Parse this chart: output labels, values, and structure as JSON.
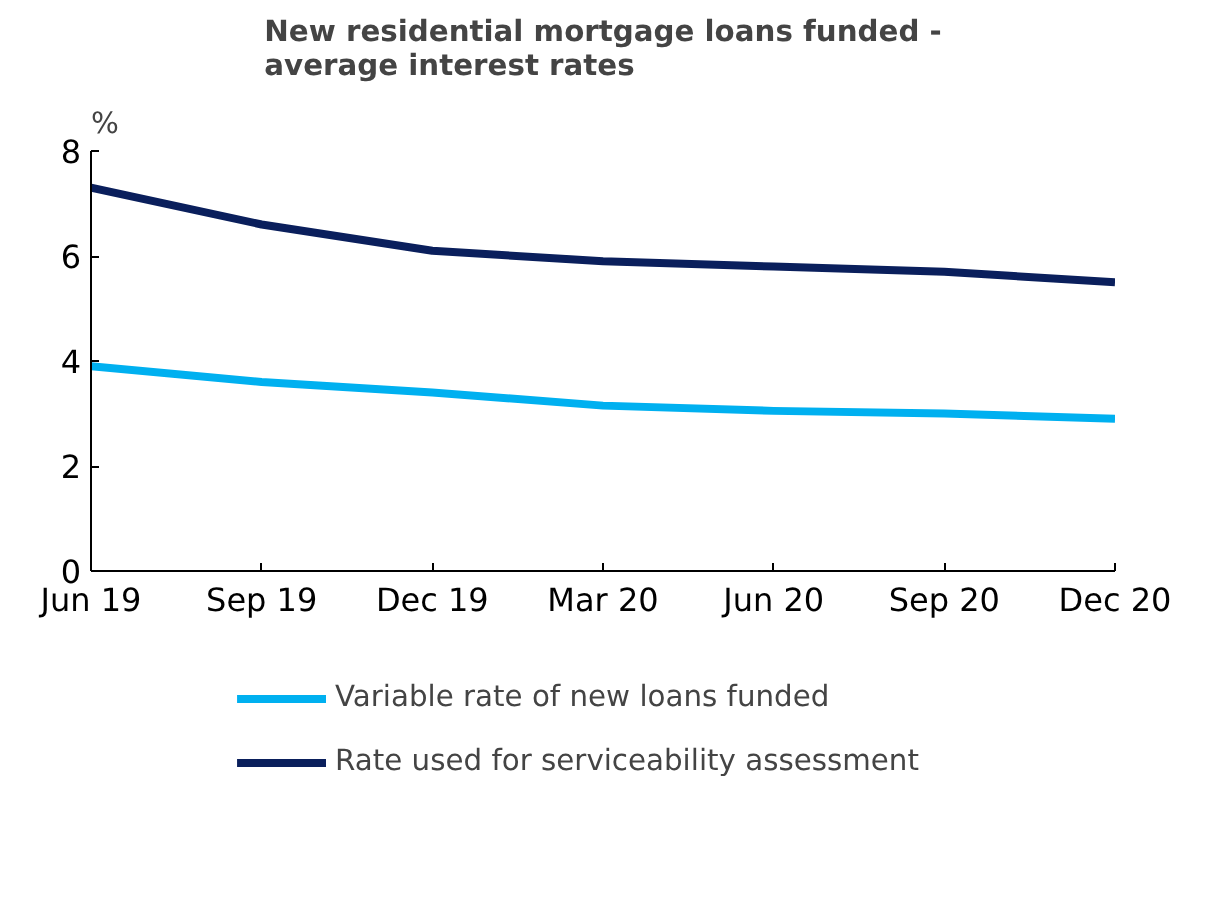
{
  "chart_data": {
    "type": "line",
    "title": "New residential mortgage loans funded -\naverage interest rates",
    "ylabel": "%",
    "categories": [
      "Jun 19",
      "Sep 19",
      "Dec 19",
      "Mar 20",
      "Jun 20",
      "Sep 20",
      "Dec 20"
    ],
    "series": [
      {
        "name": "Variable rate of new loans funded",
        "color": "#00b0f0",
        "values": [
          3.9,
          3.6,
          3.4,
          3.15,
          3.05,
          3.0,
          2.9
        ]
      },
      {
        "name": "Rate used for serviceability assessment",
        "color": "#0a1f5c",
        "values": [
          7.3,
          6.6,
          6.1,
          5.9,
          5.8,
          5.7,
          5.5
        ]
      }
    ],
    "ylim": [
      0,
      8
    ],
    "yticks": [
      0,
      2,
      4,
      6,
      8
    ],
    "grid": false,
    "legend": "bottom",
    "marker": "none",
    "line_style": "solid"
  }
}
